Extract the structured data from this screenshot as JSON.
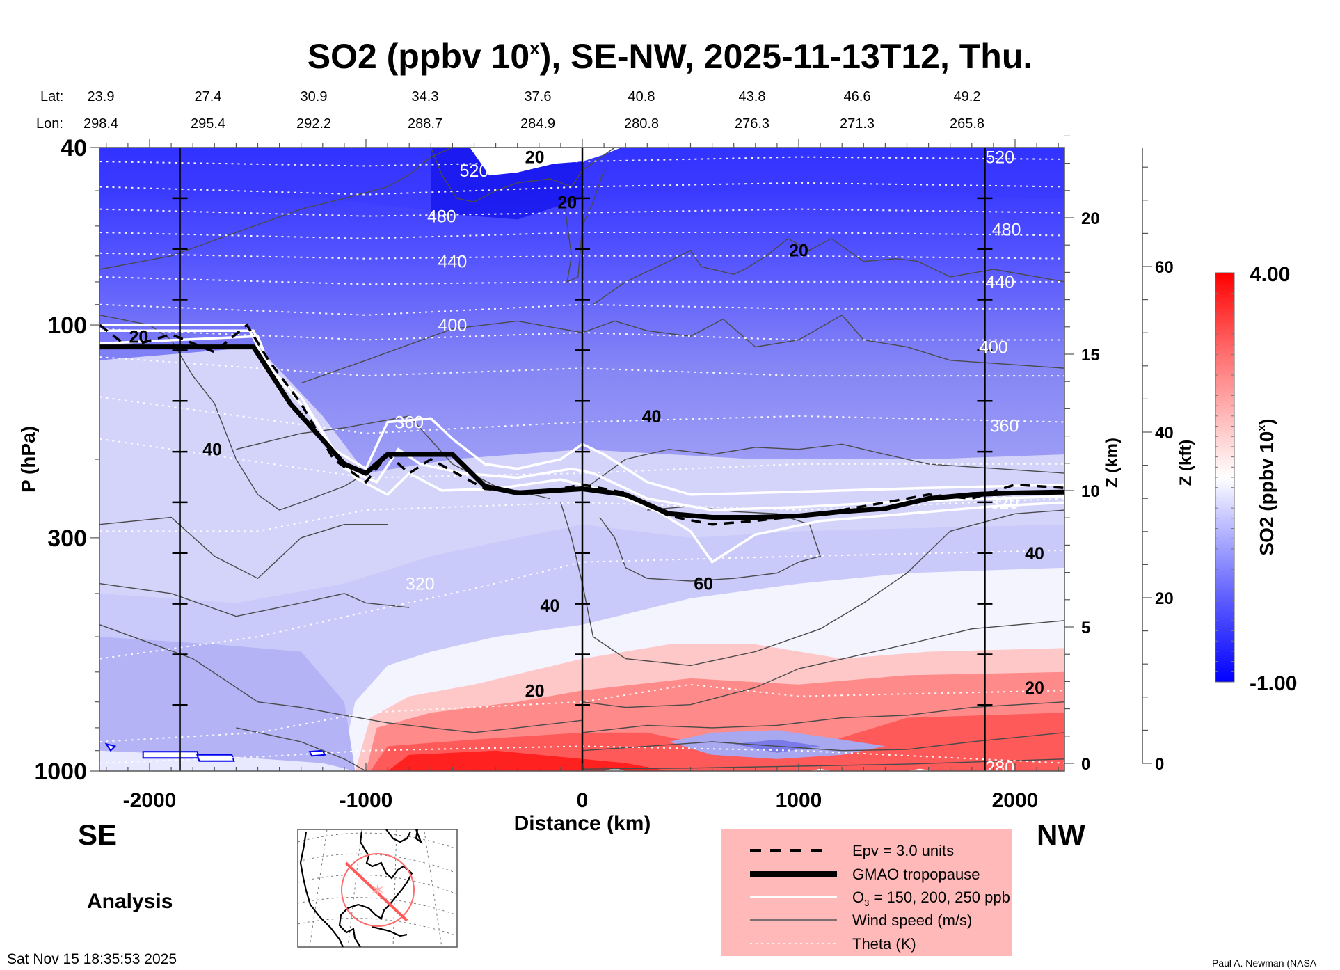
{
  "chart_data": {
    "type": "heatmap",
    "title": "SO2 (ppbv 10",
    "title_sup": "x",
    "title_rest": "), SE-NW, 2025-11-13T12, Thu.",
    "xlabel": "Distance (km)",
    "ylabel": "P (hPa)",
    "y2label": "Z (km)",
    "y3label": "Z (kft)",
    "colorbar_label": "SO2 (ppbv 10",
    "colorbar_label_sup": "x",
    "colorbar_label_rest": ")",
    "colorbar_range": [
      -1.0,
      4.0
    ],
    "colorbar_max_label": "4.00",
    "colorbar_min_label": "-1.00",
    "colorbar_colors": [
      "#0000ff",
      "#ffffff",
      "#ff0000"
    ],
    "xlim": [
      -2230,
      2230
    ],
    "ylim_hpa": [
      1000,
      40
    ],
    "x_ticks": [
      -2000,
      -1000,
      0,
      1000,
      2000
    ],
    "y_ticks_hpa": [
      40,
      100,
      300,
      1000
    ],
    "z_km_ticks": [
      0,
      5,
      10,
      15,
      20
    ],
    "z_kft_ticks": [
      0,
      20,
      40,
      60
    ],
    "lat_label": "Lat:",
    "lon_label": "Lon:",
    "lat": [
      "23.9",
      "27.4",
      "30.9",
      "34.3",
      "37.6",
      "40.8",
      "43.8",
      "46.6",
      "49.2"
    ],
    "lon": [
      "298.4",
      "295.4",
      "292.2",
      "288.7",
      "284.9",
      "280.8",
      "276.3",
      "271.3",
      "265.8"
    ],
    "marker_lines_km": [
      -1860,
      0,
      1860
    ],
    "so2_field_description": "Blue (negative log SO2) in stratosphere above ~250 hPa, strongest blue near 40-60 hPa; red (high SO2) in lower troposphere below ~500 hPa from -1000 km to 2230 km, peak near surface around -400 km; blue pocket near 800 hPa at 500-1300 km.",
    "theta_labels": [
      {
        "value": "520",
        "x_km": -500,
        "p": 45
      },
      {
        "value": "480",
        "x_km": -650,
        "p": 57
      },
      {
        "value": "440",
        "x_km": -600,
        "p": 72
      },
      {
        "value": "400",
        "x_km": -600,
        "p": 100
      },
      {
        "value": "360",
        "x_km": -800,
        "p": 165
      },
      {
        "value": "320",
        "x_km": -750,
        "p": 380
      },
      {
        "value": "520",
        "x_km": 1930,
        "p": 42
      },
      {
        "value": "480",
        "x_km": 1960,
        "p": 61
      },
      {
        "value": "440",
        "x_km": 1930,
        "p": 80
      },
      {
        "value": "400",
        "x_km": 1900,
        "p": 112
      },
      {
        "value": "360",
        "x_km": 1950,
        "p": 168
      },
      {
        "value": "320",
        "x_km": 1950,
        "p": 250
      },
      {
        "value": "280",
        "x_km": 1930,
        "p": 980
      }
    ],
    "wind_labels": [
      {
        "value": "20",
        "x_km": -2050,
        "p": 106
      },
      {
        "value": "20",
        "x_km": -220,
        "p": 42
      },
      {
        "value": "20",
        "x_km": -70,
        "p": 53
      },
      {
        "value": "20",
        "x_km": 1000,
        "p": 68
      },
      {
        "value": "40",
        "x_km": -1710,
        "p": 190
      },
      {
        "value": "40",
        "x_km": 320,
        "p": 160
      },
      {
        "value": "40",
        "x_km": -150,
        "p": 425
      },
      {
        "value": "60",
        "x_km": 560,
        "p": 380
      },
      {
        "value": "40",
        "x_km": 2090,
        "p": 325
      },
      {
        "value": "20",
        "x_km": -220,
        "p": 660
      },
      {
        "value": "20",
        "x_km": 2090,
        "p": 650
      }
    ],
    "tropopause_km_hpa": [
      [
        -2230,
        112
      ],
      [
        -1520,
        112
      ],
      [
        -1350,
        150
      ],
      [
        -1100,
        205
      ],
      [
        -1000,
        215
      ],
      [
        -900,
        195
      ],
      [
        -600,
        195
      ],
      [
        -450,
        230
      ],
      [
        -300,
        238
      ],
      [
        0,
        233
      ],
      [
        200,
        240
      ],
      [
        400,
        265
      ],
      [
        600,
        270
      ],
      [
        800,
        270
      ],
      [
        1000,
        268
      ],
      [
        1200,
        262
      ],
      [
        1400,
        258
      ],
      [
        1600,
        245
      ],
      [
        1800,
        240
      ],
      [
        2000,
        238
      ],
      [
        2230,
        237
      ]
    ],
    "legend": {
      "items": [
        {
          "label": "Epv = 3.0 units",
          "style": "dashed"
        },
        {
          "label": "GMAO tropopause",
          "style": "thick"
        },
        {
          "label": "O",
          "sub": "3",
          "label_rest": " = 150, 200, 250 ppb",
          "style": "white"
        },
        {
          "label": "Wind speed (m/s)",
          "style": "thin"
        },
        {
          "label": "Theta (K)",
          "style": "dotted-white"
        }
      ],
      "background": "#ffb9b9"
    }
  },
  "labels": {
    "se": "SE",
    "nw": "NW",
    "analysis": "Analysis",
    "timestamp": "Sat Nov 15 18:35:53 2025",
    "credit": "Paul A. Newman (NASA"
  }
}
